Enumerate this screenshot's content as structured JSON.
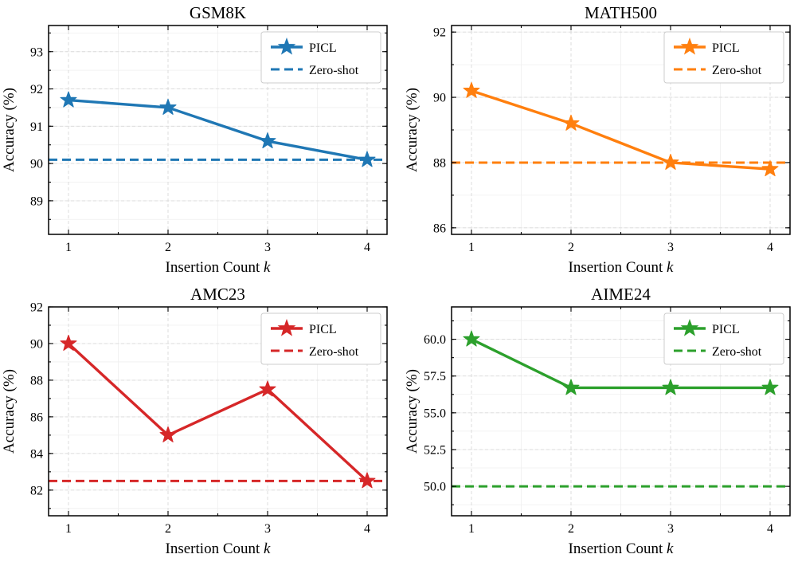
{
  "chart_data": [
    {
      "type": "line",
      "title": "GSM8K",
      "xlabel": "Insertion Count",
      "xlabel_var": "k",
      "ylabel": "Accuracy (%)",
      "x": [
        1,
        2,
        3,
        4
      ],
      "x_tick_labels": [
        "1",
        "2",
        "3",
        "4"
      ],
      "ylim": [
        88.1,
        93.7
      ],
      "y_ticks": [
        89,
        90,
        91,
        92,
        93
      ],
      "y_tick_labels": [
        "89",
        "90",
        "91",
        "92",
        "93"
      ],
      "color": "#1f77b4",
      "series": [
        {
          "name": "PICL",
          "values": [
            91.7,
            91.5,
            90.6,
            90.1
          ],
          "marker": "star"
        }
      ],
      "baseline": {
        "name": "Zero-shot",
        "value": 90.1,
        "style": "dashed"
      },
      "legend": [
        "PICL",
        "Zero-shot"
      ],
      "legend_position": "top-right",
      "grid": true
    },
    {
      "type": "line",
      "title": "MATH500",
      "xlabel": "Insertion Count",
      "xlabel_var": "k",
      "ylabel": "Accuracy (%)",
      "x": [
        1,
        2,
        3,
        4
      ],
      "x_tick_labels": [
        "1",
        "2",
        "3",
        "4"
      ],
      "ylim": [
        85.8,
        92.2
      ],
      "y_ticks": [
        86,
        88,
        90,
        92
      ],
      "y_tick_labels": [
        "86",
        "88",
        "90",
        "92"
      ],
      "color": "#ff7f0e",
      "series": [
        {
          "name": "PICL",
          "values": [
            90.2,
            89.2,
            88.0,
            87.8
          ],
          "marker": "star"
        }
      ],
      "baseline": {
        "name": "Zero-shot",
        "value": 88.0,
        "style": "dashed"
      },
      "legend": [
        "PICL",
        "Zero-shot"
      ],
      "legend_position": "top-right",
      "grid": true
    },
    {
      "type": "line",
      "title": "AMC23",
      "xlabel": "Insertion Count",
      "xlabel_var": "k",
      "ylabel": "Accuracy (%)",
      "x": [
        1,
        2,
        3,
        4
      ],
      "x_tick_labels": [
        "1",
        "2",
        "3",
        "4"
      ],
      "ylim": [
        80.6,
        92.0
      ],
      "y_ticks": [
        82,
        84,
        86,
        88,
        90,
        92
      ],
      "y_tick_labels": [
        "82",
        "84",
        "86",
        "88",
        "90",
        "92"
      ],
      "color": "#d62728",
      "series": [
        {
          "name": "PICL",
          "values": [
            90.0,
            85.0,
            87.5,
            82.5
          ],
          "marker": "star"
        }
      ],
      "baseline": {
        "name": "Zero-shot",
        "value": 82.5,
        "style": "dashed"
      },
      "legend": [
        "PICL",
        "Zero-shot"
      ],
      "legend_position": "top-right",
      "grid": true
    },
    {
      "type": "line",
      "title": "AIME24",
      "xlabel": "Insertion Count",
      "xlabel_var": "k",
      "ylabel": "Accuracy (%)",
      "x": [
        1,
        2,
        3,
        4
      ],
      "x_tick_labels": [
        "1",
        "2",
        "3",
        "4"
      ],
      "ylim": [
        48.0,
        62.2
      ],
      "y_ticks": [
        50.0,
        52.5,
        55.0,
        57.5,
        60.0
      ],
      "y_tick_labels": [
        "50.0",
        "52.5",
        "55.0",
        "57.5",
        "60.0"
      ],
      "color": "#2ca02c",
      "series": [
        {
          "name": "PICL",
          "values": [
            60.0,
            56.7,
            56.7,
            56.7
          ],
          "marker": "star"
        }
      ],
      "baseline": {
        "name": "Zero-shot",
        "value": 50.0,
        "style": "dashed"
      },
      "legend": [
        "PICL",
        "Zero-shot"
      ],
      "legend_position": "top-right",
      "grid": true
    }
  ]
}
